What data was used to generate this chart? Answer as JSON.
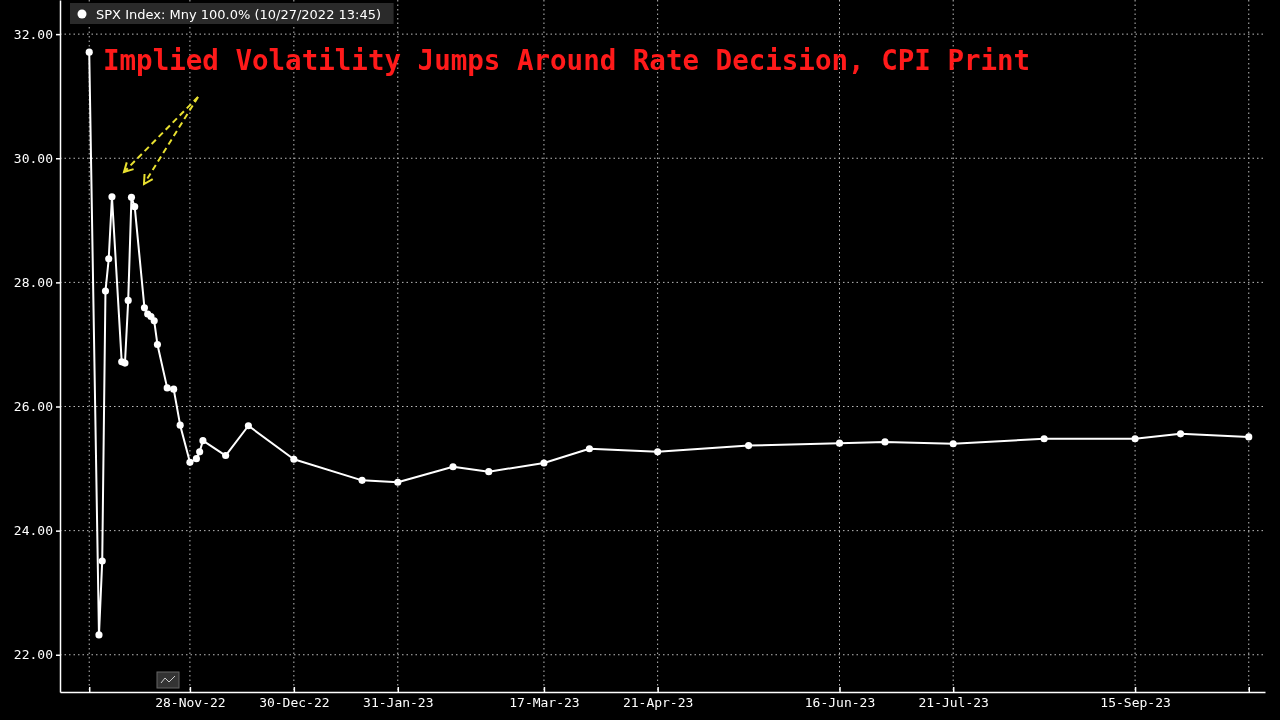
{
  "chart_data": {
    "type": "line",
    "title": "Implied Volatility Jumps Around Rate Decision, CPI Print",
    "x": [
      "2022-10-28",
      "2022-10-31",
      "2022-11-01",
      "2022-11-02",
      "2022-11-03",
      "2022-11-04",
      "2022-11-07",
      "2022-11-08",
      "2022-11-09",
      "2022-11-10",
      "2022-11-11",
      "2022-11-14",
      "2022-11-15",
      "2022-11-16",
      "2022-11-17",
      "2022-11-18",
      "2022-11-21",
      "2022-11-23",
      "2022-11-25",
      "2022-11-28",
      "2022-11-30",
      "2022-12-01",
      "2022-12-02",
      "2022-12-09",
      "2022-12-16",
      "2022-12-30",
      "2023-01-20",
      "2023-01-31",
      "2023-02-17",
      "2023-02-28",
      "2023-03-17",
      "2023-03-31",
      "2023-04-21",
      "2023-05-19",
      "2023-06-16",
      "2023-06-30",
      "2023-07-21",
      "2023-08-18",
      "2023-09-15",
      "2023-09-29",
      "2023-10-20"
    ],
    "series": [
      {
        "name": "SPX Index: Mny 100.0% (10/27/2022 13:45)",
        "color": "#ffffff",
        "values": [
          31.71,
          22.32,
          23.51,
          27.86,
          28.38,
          29.38,
          26.72,
          26.7,
          27.71,
          29.37,
          29.22,
          27.59,
          27.49,
          27.45,
          27.38,
          27.0,
          26.3,
          26.28,
          25.7,
          25.1,
          25.16,
          25.27,
          25.45,
          25.21,
          25.69,
          25.15,
          24.81,
          24.78,
          25.03,
          24.95,
          25.09,
          25.32,
          25.27,
          25.37,
          25.41,
          25.43,
          25.4,
          25.48,
          25.48,
          25.56,
          25.51
        ]
      }
    ],
    "xlim": [
      "2022-10-19",
      "2023-10-25"
    ],
    "xticks": [
      {
        "value": "2022-10-28",
        "label": null
      },
      {
        "value": "2022-11-28",
        "label": "28-Nov-22"
      },
      {
        "value": "2022-12-30",
        "label": "30-Dec-22"
      },
      {
        "value": "2023-01-31",
        "label": "31-Jan-23"
      },
      {
        "value": "2023-03-17",
        "label": "17-Mar-23"
      },
      {
        "value": "2023-04-21",
        "label": "21-Apr-23"
      },
      {
        "value": "2023-06-16",
        "label": "16-Jun-23"
      },
      {
        "value": "2023-07-21",
        "label": "21-Jul-23"
      },
      {
        "value": "2023-09-15",
        "label": "15-Sep-23"
      },
      {
        "value": "2023-10-20",
        "label": null
      }
    ],
    "ylim": [
      21.4,
      32.55
    ],
    "yticks": [
      {
        "value": 22,
        "label": "22.00"
      },
      {
        "value": 24,
        "label": "24.00"
      },
      {
        "value": 26,
        "label": "26.00"
      },
      {
        "value": 28,
        "label": "28.00"
      },
      {
        "value": 30,
        "label": "30.00"
      },
      {
        "value": 32,
        "label": "32.00"
      }
    ],
    "grid": true,
    "legend": "top left",
    "marker": "circle",
    "line_style": "solid"
  }
}
